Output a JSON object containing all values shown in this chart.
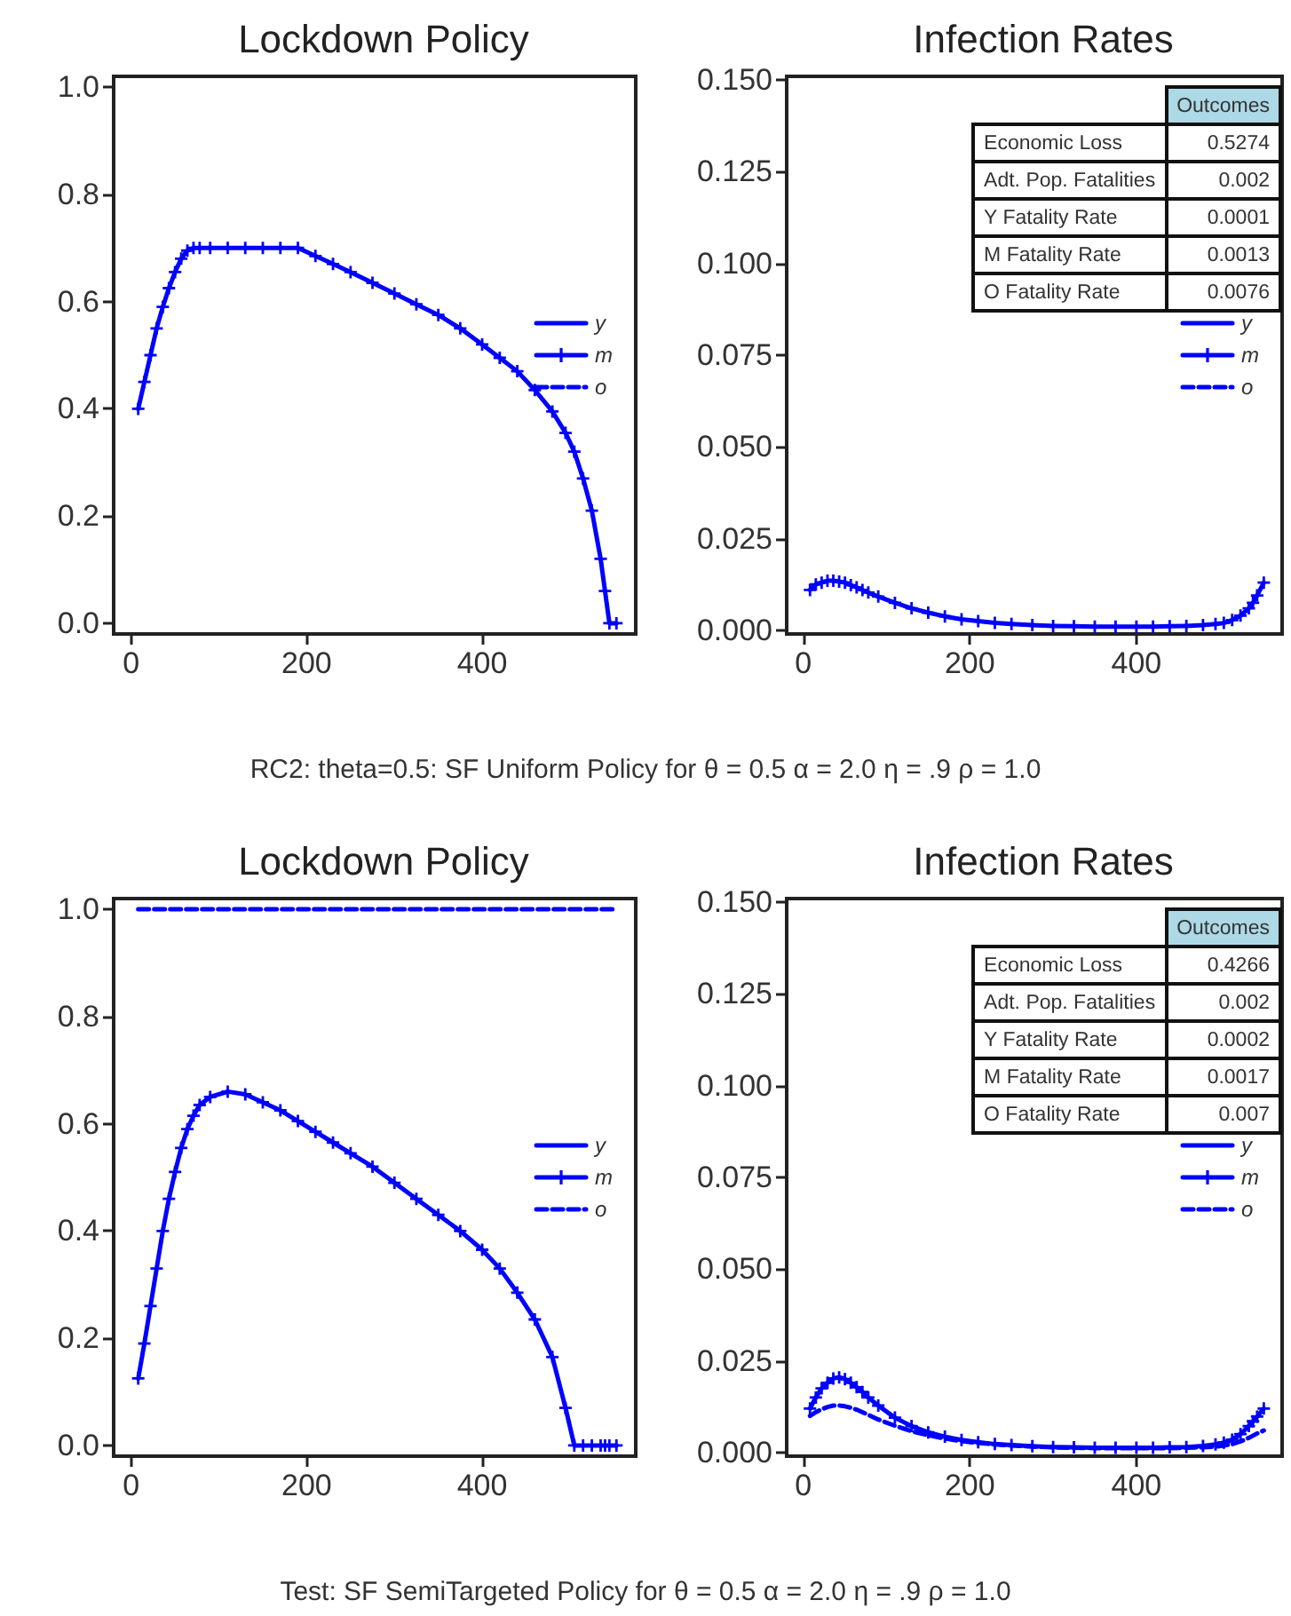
{
  "chart_data": [
    {
      "type": "line",
      "title": "Lockdown Policy",
      "annotations": [
        "RC2: theta=0.5: SF Uniform Policy for   θ = 0.5   α = 2.0   η = .9  ρ = 1.0"
      ],
      "x": [
        8,
        15,
        22,
        29,
        36,
        43,
        50,
        57,
        64,
        71,
        78,
        90,
        110,
        130,
        150,
        170,
        190,
        210,
        230,
        250,
        275,
        300,
        325,
        350,
        375,
        400,
        420,
        440,
        460,
        480,
        495,
        505,
        515,
        525,
        535,
        540,
        545,
        553
      ],
      "series": [
        {
          "name": "y",
          "color": "#0000ff",
          "marker": "none",
          "line_style": "solid",
          "values": [
            null,
            null,
            null,
            null,
            null,
            null,
            null,
            null,
            null,
            null,
            null,
            null,
            null,
            null,
            null,
            null,
            null,
            null,
            null,
            null,
            null,
            null,
            null,
            null,
            null,
            null,
            null,
            null,
            null,
            null,
            null,
            null,
            null,
            null,
            null,
            null,
            null,
            null
          ]
        },
        {
          "name": "m",
          "color": "#0000ff",
          "marker": "cross",
          "line_style": "solid",
          "values": [
            0.4,
            0.45,
            0.5,
            0.55,
            0.59,
            0.625,
            0.655,
            0.68,
            0.695,
            0.7,
            0.7,
            0.7,
            0.7,
            0.7,
            0.7,
            0.7,
            0.7,
            0.685,
            0.67,
            0.655,
            0.635,
            0.615,
            0.595,
            0.575,
            0.55,
            0.52,
            0.495,
            0.47,
            0.435,
            0.395,
            0.355,
            0.32,
            0.27,
            0.21,
            0.12,
            0.06,
            0,
            0
          ]
        },
        {
          "name": "o",
          "color": "#0000ff",
          "marker": "none",
          "line_style": "dashed",
          "values": [
            null,
            null,
            null,
            null,
            null,
            null,
            null,
            null,
            null,
            null,
            null,
            null,
            null,
            null,
            null,
            null,
            null,
            null,
            null,
            null,
            null,
            null,
            null,
            null,
            null,
            null,
            null,
            null,
            null,
            null,
            null,
            null,
            null,
            null,
            null,
            null,
            null,
            null
          ]
        }
      ],
      "xlim": [
        -20,
        575
      ],
      "xticks": [
        0,
        200,
        400
      ],
      "ylim": [
        -0.02,
        1.02
      ],
      "yticks": [
        {
          "value": 0,
          "label": "0.0"
        },
        0.2,
        0.4,
        0.6,
        0.8,
        {
          "value": 1,
          "label": "1.0"
        }
      ],
      "grid": false,
      "legend": "right"
    },
    {
      "type": "line",
      "title": "Infection Rates",
      "annotations": [
        "Outcomes",
        "Economic Loss",
        "0.5274",
        "Adt. Pop. Fatalities",
        "0.002",
        "Y Fatality Rate",
        "0.0001",
        "M Fatality Rate",
        "0.0013",
        "O Fatality Rate",
        "0.0076"
      ],
      "x": [
        8,
        15,
        22,
        29,
        36,
        43,
        50,
        57,
        64,
        71,
        78,
        90,
        110,
        130,
        150,
        170,
        190,
        210,
        230,
        250,
        275,
        300,
        325,
        350,
        375,
        400,
        420,
        440,
        460,
        480,
        495,
        505,
        515,
        525,
        535,
        540,
        545,
        553
      ],
      "series": [
        {
          "name": "y",
          "color": "#0000ff",
          "marker": "none",
          "line_style": "solid",
          "values": [
            null,
            null,
            null,
            null,
            null,
            null,
            null,
            null,
            null,
            null,
            null,
            null,
            null,
            null,
            null,
            null,
            null,
            null,
            null,
            null,
            null,
            null,
            null,
            null,
            null,
            null,
            null,
            null,
            null,
            null,
            null,
            null,
            null,
            null,
            null,
            null,
            null,
            null
          ]
        },
        {
          "name": "m",
          "color": "#0000ff",
          "marker": "cross",
          "line_style": "solid",
          "values": [
            0.011,
            0.0125,
            0.013,
            0.0135,
            0.0135,
            0.0133,
            0.013,
            0.0123,
            0.0117,
            0.011,
            0.0103,
            0.0092,
            0.0075,
            0.006,
            0.0048,
            0.0038,
            0.003,
            0.0025,
            0.002,
            0.0017,
            0.0014,
            0.0012,
            0.0011,
            0.001,
            0.001,
            0.001,
            0.001,
            0.0011,
            0.0012,
            0.0014,
            0.0017,
            0.002,
            0.0028,
            0.004,
            0.006,
            0.0075,
            0.0095,
            0.013
          ]
        },
        {
          "name": "o",
          "color": "#0000ff",
          "marker": "none",
          "line_style": "dashed",
          "values": [
            null,
            null,
            null,
            null,
            null,
            null,
            null,
            null,
            null,
            null,
            null,
            null,
            null,
            null,
            null,
            null,
            null,
            null,
            null,
            null,
            null,
            null,
            null,
            null,
            null,
            null,
            null,
            null,
            null,
            null,
            null,
            null,
            null,
            null,
            null,
            null,
            null,
            null
          ]
        }
      ],
      "xlim": [
        -20,
        575
      ],
      "xticks": [
        0,
        200,
        400
      ],
      "ylim": [
        -0.001,
        0.151
      ],
      "yticks": [
        {
          "value": 0,
          "label": "0.000"
        },
        0.025,
        {
          "value": 0.05,
          "label": "0.050"
        },
        0.075,
        {
          "value": 0.1,
          "label": "0.100"
        },
        0.125,
        {
          "value": 0.15,
          "label": "0.150"
        }
      ],
      "grid": false,
      "legend": "right"
    },
    {
      "type": "line",
      "title": "Lockdown Policy",
      "annotations": [
        "Test: SF SemiTargeted Policy for   θ = 0.5   α = 2.0   η = .9  ρ = 1.0"
      ],
      "x": [
        8,
        15,
        22,
        29,
        36,
        43,
        50,
        57,
        64,
        71,
        78,
        90,
        110,
        130,
        150,
        170,
        190,
        210,
        230,
        250,
        275,
        300,
        325,
        350,
        375,
        400,
        420,
        440,
        460,
        480,
        495,
        505,
        515,
        525,
        535,
        540,
        545,
        553
      ],
      "series": [
        {
          "name": "y",
          "color": "#0000ff",
          "marker": "none",
          "line_style": "solid",
          "values": [
            null,
            null,
            null,
            null,
            null,
            null,
            null,
            null,
            null,
            null,
            null,
            null,
            null,
            null,
            null,
            null,
            null,
            null,
            null,
            null,
            null,
            null,
            null,
            null,
            null,
            null,
            null,
            null,
            null,
            null,
            null,
            null,
            null,
            null,
            null,
            null,
            null,
            null
          ]
        },
        {
          "name": "m",
          "color": "#0000ff",
          "marker": "cross",
          "line_style": "solid",
          "values": [
            0.125,
            0.19,
            0.26,
            0.33,
            0.4,
            0.46,
            0.51,
            0.555,
            0.59,
            0.615,
            0.635,
            0.65,
            0.66,
            0.655,
            0.64,
            0.625,
            0.605,
            0.585,
            0.565,
            0.545,
            0.52,
            0.49,
            0.46,
            0.43,
            0.4,
            0.365,
            0.33,
            0.285,
            0.235,
            0.165,
            0.07,
            0,
            0,
            0,
            0,
            0,
            0,
            0
          ]
        },
        {
          "name": "o",
          "color": "#0000ff",
          "marker": "none",
          "line_style": "dashed",
          "values": [
            1,
            1,
            1,
            1,
            1,
            1,
            1,
            1,
            1,
            1,
            1,
            1,
            1,
            1,
            1,
            1,
            1,
            1,
            1,
            1,
            1,
            1,
            1,
            1,
            1,
            1,
            1,
            1,
            1,
            1,
            1,
            1,
            1,
            1,
            1,
            1,
            1,
            1
          ]
        }
      ],
      "xlim": [
        -20,
        575
      ],
      "xticks": [
        0,
        200,
        400
      ],
      "ylim": [
        -0.02,
        1.02
      ],
      "yticks": [
        {
          "value": 0,
          "label": "0.0"
        },
        0.2,
        0.4,
        0.6,
        0.8,
        {
          "value": 1,
          "label": "1.0"
        }
      ],
      "grid": false,
      "legend": "right"
    },
    {
      "type": "line",
      "title": "Infection Rates",
      "annotations": [
        "Outcomes",
        "Economic Loss",
        "0.4266",
        "Adt. Pop. Fatalities",
        "0.002",
        "Y Fatality Rate",
        "0.0002",
        "M Fatality Rate",
        "0.0017",
        "O Fatality Rate",
        "0.007"
      ],
      "x": [
        8,
        15,
        22,
        29,
        36,
        43,
        50,
        57,
        64,
        71,
        78,
        90,
        110,
        130,
        150,
        170,
        190,
        210,
        230,
        250,
        275,
        300,
        325,
        350,
        375,
        400,
        420,
        440,
        460,
        480,
        495,
        505,
        515,
        525,
        535,
        540,
        545,
        553
      ],
      "series": [
        {
          "name": "y",
          "color": "#0000ff",
          "marker": "none",
          "line_style": "solid",
          "values": [
            null,
            null,
            null,
            null,
            null,
            null,
            null,
            null,
            null,
            null,
            null,
            null,
            null,
            null,
            null,
            null,
            null,
            null,
            null,
            null,
            null,
            null,
            null,
            null,
            null,
            null,
            null,
            null,
            null,
            null,
            null,
            null,
            null,
            null,
            null,
            null,
            null,
            null
          ]
        },
        {
          "name": "m",
          "color": "#0000ff",
          "marker": "cross",
          "line_style": "solid",
          "values": [
            0.012,
            0.015,
            0.0175,
            0.019,
            0.0202,
            0.0205,
            0.02,
            0.019,
            0.0178,
            0.0165,
            0.015,
            0.0128,
            0.0095,
            0.0072,
            0.0055,
            0.0043,
            0.0034,
            0.0028,
            0.0023,
            0.002,
            0.0017,
            0.0015,
            0.0014,
            0.0013,
            0.0013,
            0.0013,
            0.0013,
            0.0014,
            0.0015,
            0.0018,
            0.0022,
            0.0027,
            0.0035,
            0.005,
            0.0072,
            0.0085,
            0.0098,
            0.012
          ]
        },
        {
          "name": "o",
          "color": "#0000ff",
          "marker": "none",
          "line_style": "dashed",
          "values": [
            0.01,
            0.011,
            0.0118,
            0.0124,
            0.0128,
            0.0128,
            0.0126,
            0.0122,
            0.0117,
            0.011,
            0.0103,
            0.009,
            0.0073,
            0.0058,
            0.0047,
            0.0038,
            0.0031,
            0.0026,
            0.0022,
            0.0019,
            0.0016,
            0.0014,
            0.0013,
            0.0012,
            0.0012,
            0.0012,
            0.0012,
            0.0012,
            0.0013,
            0.0014,
            0.0016,
            0.0019,
            0.0023,
            0.003,
            0.004,
            0.0046,
            0.0052,
            0.006
          ]
        }
      ],
      "xlim": [
        -20,
        575
      ],
      "xticks": [
        0,
        200,
        400
      ],
      "ylim": [
        -0.001,
        0.151
      ],
      "yticks": [
        {
          "value": 0,
          "label": "0.000"
        },
        0.025,
        {
          "value": 0.05,
          "label": "0.050"
        },
        0.075,
        {
          "value": 0.1,
          "label": "0.100"
        },
        0.125,
        {
          "value": 0.15,
          "label": "0.150"
        }
      ],
      "grid": false,
      "legend": "right"
    }
  ]
}
